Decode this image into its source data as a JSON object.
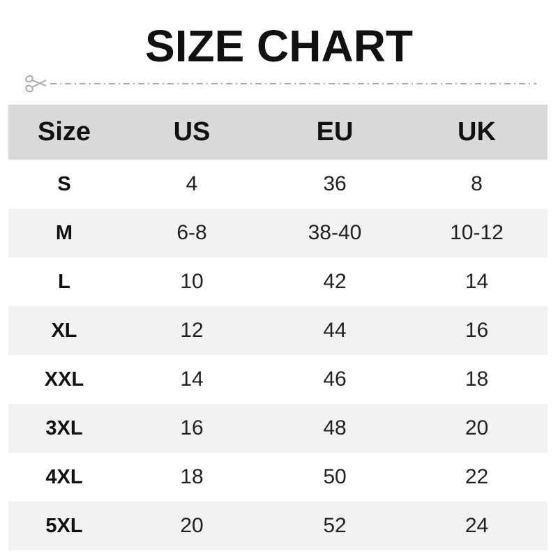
{
  "title": "SIZE CHART",
  "icons": {
    "cut_line": "scissors-icon"
  },
  "colors": {
    "header_bg": "#d9d9d9",
    "alt_row_bg": "#f2f2f2",
    "cut_line": "#aaaaaa"
  },
  "table": {
    "headers": [
      "Size",
      "US",
      "EU",
      "UK"
    ],
    "rows": [
      [
        "S",
        "4",
        "36",
        "8"
      ],
      [
        "M",
        "6-8",
        "38-40",
        "10-12"
      ],
      [
        "L",
        "10",
        "42",
        "14"
      ],
      [
        "XL",
        "12",
        "44",
        "16"
      ],
      [
        "XXL",
        "14",
        "46",
        "18"
      ],
      [
        "3XL",
        "16",
        "48",
        "20"
      ],
      [
        "4XL",
        "18",
        "50",
        "22"
      ],
      [
        "5XL",
        "20",
        "52",
        "24"
      ]
    ]
  }
}
